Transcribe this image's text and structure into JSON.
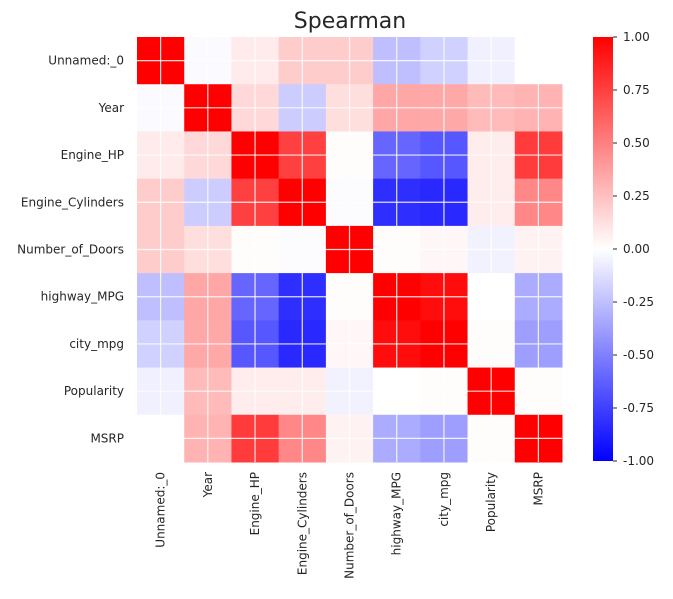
{
  "chart_data": {
    "type": "heatmap",
    "title": "Spearman",
    "row_labels": [
      "Unnamed:_0",
      "Year",
      "Engine_HP",
      "Engine_Cylinders",
      "Number_of_Doors",
      "highway_MPG",
      "city_mpg",
      "Popularity",
      "MSRP"
    ],
    "col_labels": [
      "Unnamed:_0",
      "Year",
      "Engine_HP",
      "Engine_Cylinders",
      "Number_of_Doors",
      "highway_MPG",
      "city_mpg",
      "Popularity",
      "MSRP"
    ],
    "values": [
      [
        1.0,
        -0.02,
        0.08,
        0.2,
        0.2,
        -0.25,
        -0.18,
        -0.06,
        0.0
      ],
      [
        -0.02,
        1.0,
        0.15,
        -0.2,
        0.13,
        0.35,
        0.34,
        0.27,
        0.3
      ],
      [
        0.08,
        0.15,
        1.0,
        0.75,
        0.01,
        -0.6,
        -0.66,
        0.07,
        0.77
      ],
      [
        0.2,
        -0.2,
        0.75,
        1.0,
        -0.01,
        -0.82,
        -0.84,
        0.07,
        0.47
      ],
      [
        0.2,
        0.13,
        0.01,
        -0.01,
        1.0,
        0.01,
        0.03,
        -0.05,
        0.05
      ],
      [
        -0.25,
        0.35,
        -0.6,
        -0.82,
        0.01,
        1.0,
        0.95,
        0.0,
        -0.33
      ],
      [
        -0.18,
        0.34,
        -0.66,
        -0.84,
        0.03,
        0.95,
        1.0,
        0.01,
        -0.38
      ],
      [
        -0.06,
        0.27,
        0.07,
        0.07,
        -0.05,
        0.0,
        0.01,
        1.0,
        0.01
      ],
      [
        0.0,
        0.3,
        0.77,
        0.47,
        0.05,
        -0.33,
        -0.38,
        0.01,
        1.0
      ]
    ],
    "colormap": "bwr",
    "vmin": -1.0,
    "vmax": 1.0,
    "colorbar_ticks": [
      "1.00",
      "0.75",
      "0.50",
      "0.25",
      "0.00",
      "-0.25",
      "-0.50",
      "-0.75",
      "-1.00"
    ],
    "grid": true
  }
}
